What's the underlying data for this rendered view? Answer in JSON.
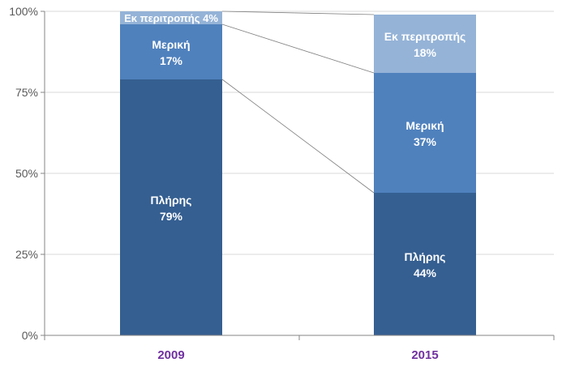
{
  "chart_data": {
    "type": "bar",
    "stacked": true,
    "categories": [
      "2009",
      "2015"
    ],
    "y_ticks": [
      "0%",
      "25%",
      "50%",
      "75%",
      "100%"
    ],
    "ylim": [
      0,
      100
    ],
    "grid": true,
    "legend": "none",
    "series": [
      {
        "name": "Πλήρης",
        "values": [
          79,
          44
        ],
        "labels": [
          "79%",
          "44%"
        ]
      },
      {
        "name": "Μερική",
        "values": [
          17,
          37
        ],
        "labels": [
          "17%",
          "37%"
        ]
      },
      {
        "name": "Εκ περιτροπής",
        "values": [
          4,
          18
        ],
        "labels": [
          "4%",
          "18%"
        ]
      }
    ],
    "colors": {
      "series": [
        "#355F91",
        "#4F81BD",
        "#95B3D7"
      ],
      "category_label": "#7030A0",
      "axis_text": "#595959",
      "grid": "#D9D9D9",
      "axis": "#868686",
      "connector": "#7F7F7F",
      "bar_text": "#FFFFFF"
    }
  }
}
